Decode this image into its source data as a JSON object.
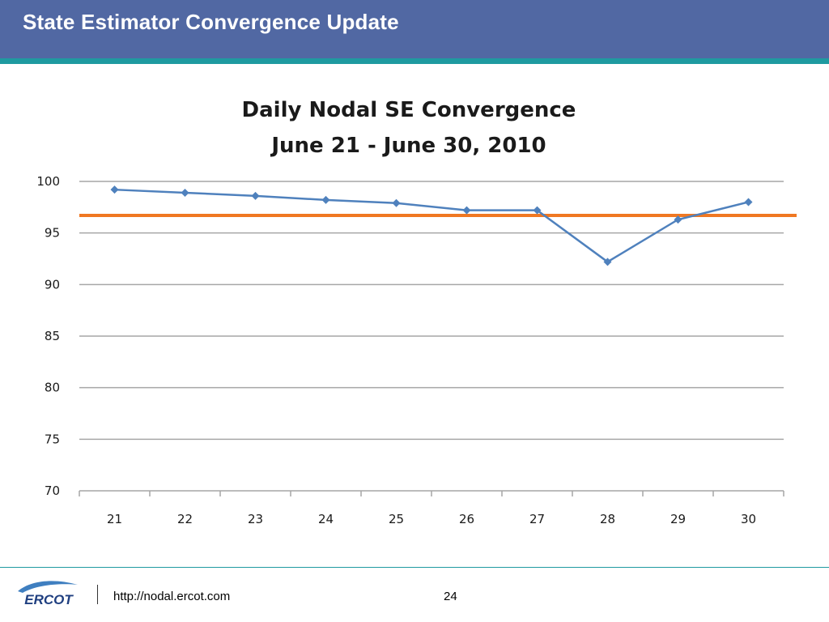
{
  "slide": {
    "title": "State Estimator Convergence Update",
    "url": "http://nodal.ercot.com",
    "page_number": "24",
    "logo_text": "ERCOT"
  },
  "colors": {
    "header": "#5168a3",
    "accent": "#1f9aa0",
    "series": "#4f81bd",
    "threshold": "#f07822",
    "grid": "#a6a6a6"
  },
  "chart_data": {
    "type": "line",
    "title_lines": [
      "Daily Nodal SE Convergence",
      "June 21 - June 30, 2010"
    ],
    "categories": [
      "21",
      "22",
      "23",
      "24",
      "25",
      "26",
      "27",
      "28",
      "29",
      "30"
    ],
    "series": [
      {
        "values": [
          99.2,
          98.9,
          98.6,
          98.2,
          97.9,
          97.2,
          97.2,
          92.2,
          96.3,
          98.0
        ]
      },
      {
        "values": [
          96.7,
          96.7,
          96.7,
          96.7,
          96.7,
          96.7,
          96.7,
          96.7,
          96.7,
          96.7
        ]
      }
    ],
    "yticks": [
      100,
      95,
      90,
      85,
      80,
      75,
      70
    ],
    "ylim": [
      70,
      100
    ],
    "grid": true,
    "legend": "none"
  }
}
